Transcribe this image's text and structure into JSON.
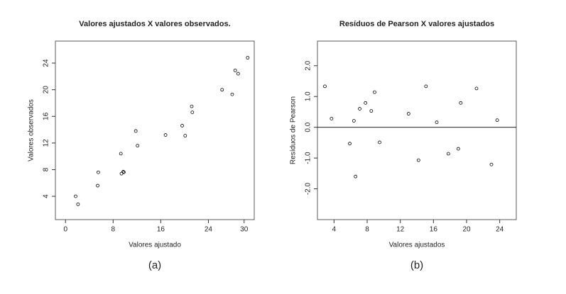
{
  "chart_data": [
    {
      "type": "scatter",
      "title": "Valores ajustados X valores observados.",
      "x_label": "Valores ajustado",
      "y_label": "Valores observados",
      "caption": "(a)",
      "color": "#000000",
      "x": [
        1.7,
        2.1,
        5.5,
        5.4,
        9.3,
        9.4,
        9.7,
        9.8,
        11.8,
        12.1,
        16.8,
        19.6,
        20.1,
        21.2,
        21.3,
        26.3,
        28.0,
        28.5,
        29.0,
        30.6
      ],
      "values": [
        4.0,
        2.8,
        7.6,
        5.6,
        10.4,
        7.4,
        7.7,
        7.6,
        13.8,
        11.6,
        13.2,
        14.6,
        13.1,
        17.5,
        16.6,
        20.0,
        19.3,
        22.9,
        22.4,
        24.8
      ],
      "xlim": [
        -1.7,
        31.7
      ],
      "xticks": [
        0,
        8,
        16,
        24,
        30
      ],
      "ylim": [
        0.5,
        27.3
      ],
      "yticks": [
        4,
        8,
        12,
        16,
        20,
        24
      ]
    },
    {
      "type": "scatter",
      "title": "Resíduos de Pearson X valores ajustados",
      "x_label": "Valores ajustados",
      "y_label": "Resíduos de Pearson",
      "caption": "(b)",
      "color": "#000000",
      "reference_line": 0,
      "x": [
        2.9,
        3.7,
        5.9,
        6.4,
        6.6,
        7.1,
        7.8,
        8.5,
        8.9,
        9.5,
        13.0,
        14.2,
        15.1,
        16.4,
        17.8,
        19.0,
        19.3,
        21.2,
        23.0,
        23.7
      ],
      "values": [
        1.33,
        0.28,
        -0.53,
        0.21,
        -1.6,
        0.6,
        0.79,
        0.53,
        1.14,
        -0.49,
        0.44,
        -1.07,
        1.33,
        0.16,
        -0.86,
        -0.7,
        0.79,
        1.26,
        -1.21,
        0.23
      ],
      "xlim": [
        2.0,
        26.0
      ],
      "xticks": [
        4,
        8,
        12,
        16,
        20,
        24
      ],
      "ylim": [
        -3.0,
        2.8
      ],
      "yticks": [
        {
          "value": 2,
          "label": "2.0"
        },
        {
          "value": 1,
          "label": "1.0"
        },
        {
          "value": 0,
          "label": "0.0"
        },
        {
          "value": -1,
          "label": "-1.0"
        },
        {
          "value": -2,
          "label": "-2.0"
        }
      ]
    }
  ]
}
